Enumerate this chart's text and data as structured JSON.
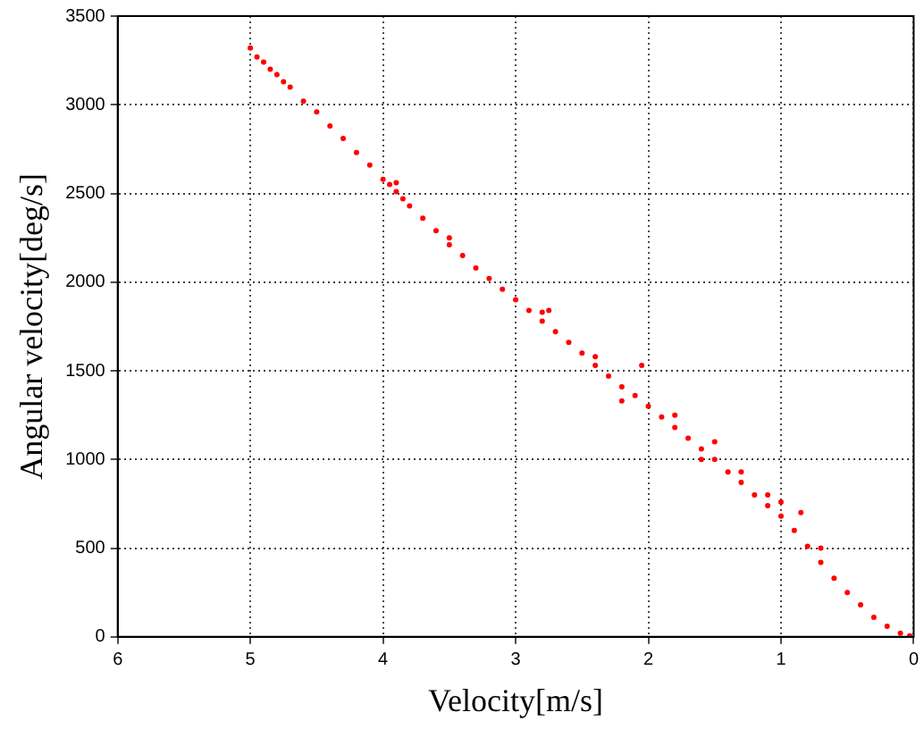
{
  "chart_data": {
    "type": "scatter",
    "xlabel": "Velocity[m/s]",
    "ylabel": "Angular velocity[deg/s]",
    "xlim": [
      6,
      0
    ],
    "ylim": [
      0,
      3500
    ],
    "xticks": [
      6,
      5,
      4,
      3,
      2,
      1,
      0
    ],
    "yticks": [
      0,
      500,
      1000,
      1500,
      2000,
      2500,
      3000,
      3500
    ],
    "grid": true,
    "marker": "circle",
    "series": [
      {
        "color": "#ff0000",
        "x": [
          5.0,
          4.95,
          4.9,
          4.85,
          4.8,
          4.75,
          4.7,
          4.6,
          4.5,
          4.4,
          4.3,
          4.2,
          4.1,
          4.0,
          3.95,
          3.9,
          3.85,
          3.8,
          3.7,
          3.6,
          3.5,
          3.4,
          3.3,
          3.2,
          3.1,
          3.0,
          2.9,
          2.8,
          2.7,
          2.6,
          2.5,
          2.4,
          2.3,
          2.2,
          2.1,
          2.0,
          1.9,
          1.8,
          1.7,
          1.6,
          1.5,
          1.4,
          1.3,
          1.2,
          1.1,
          1.0,
          0.9,
          0.8,
          0.7,
          0.6,
          0.5,
          0.4,
          0.3,
          0.2,
          0.1,
          0.03,
          3.5,
          2.8,
          2.05,
          2.4,
          1.8,
          1.6,
          1.3,
          1.0,
          2.75,
          3.9,
          2.2,
          1.5,
          1.1,
          0.7,
          0.85
        ],
        "values": [
          3320,
          3270,
          3240,
          3200,
          3170,
          3130,
          3100,
          3020,
          2960,
          2880,
          2810,
          2730,
          2660,
          2580,
          2550,
          2510,
          2470,
          2430,
          2360,
          2290,
          2210,
          2150,
          2080,
          2020,
          1960,
          1900,
          1840,
          1780,
          1720,
          1660,
          1600,
          1530,
          1470,
          1410,
          1360,
          1300,
          1240,
          1180,
          1120,
          1060,
          1000,
          930,
          870,
          800,
          740,
          680,
          600,
          510,
          420,
          330,
          250,
          180,
          110,
          60,
          20,
          5,
          2250,
          1830,
          1530,
          1580,
          1250,
          1000,
          930,
          760,
          1840,
          2560,
          1330,
          1100,
          800,
          500,
          700
        ]
      }
    ]
  }
}
